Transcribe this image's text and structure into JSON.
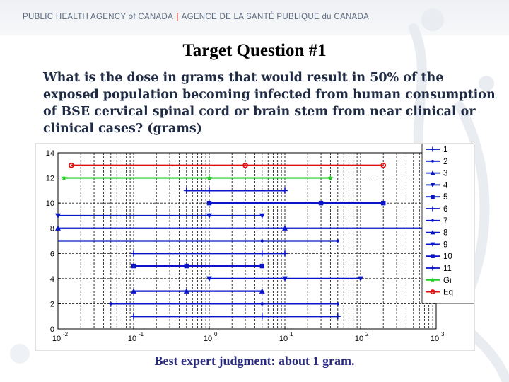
{
  "header": {
    "agency_en": "PUBLIC HEALTH AGENCY of CANADA",
    "separator": "|",
    "agency_fr": "AGENCE DE LA SANTÉ PUBLIQUE du CANADA"
  },
  "slide": {
    "title": "Target Question #1",
    "question": "What is the dose in grams that would result in 50% of the exposed population becoming infected from human consumption of BSE cervical spinal cord or brain stem from near clinical or clinical cases? (grams)",
    "footer": "Best expert judgment: about 1 gram."
  },
  "colors": {
    "experts": "#0a14c8",
    "gi": "#22cc22",
    "eq": "#e01010",
    "grid": "#222222"
  },
  "chart_data": {
    "type": "interval",
    "xscale": "log",
    "xlim": [
      0.01,
      1000
    ],
    "ylim": [
      0,
      14
    ],
    "x_ticks": [
      {
        "value": 0.01,
        "base": "10",
        "exp": "-2"
      },
      {
        "value": 0.1,
        "base": "10",
        "exp": "-1"
      },
      {
        "value": 1,
        "base": "10",
        "exp": "0"
      },
      {
        "value": 10,
        "base": "10",
        "exp": "1"
      },
      {
        "value": 100,
        "base": "10",
        "exp": "2"
      },
      {
        "value": 1000,
        "base": "10",
        "exp": "3"
      }
    ],
    "y_ticks": [
      "0",
      "2",
      "4",
      "6",
      "8",
      "10",
      "12",
      "14"
    ],
    "y_tick_values": [
      0,
      2,
      4,
      6,
      8,
      10,
      12,
      14
    ],
    "grid": true,
    "legend_position": "right",
    "series": [
      {
        "name": "1",
        "y": 1,
        "low": 0.1,
        "median": 5,
        "high": 50,
        "marker": "plus",
        "color": "#0a14c8"
      },
      {
        "name": "2",
        "y": 2,
        "low": 0.05,
        "median": 5,
        "high": 50,
        "marker": "dot",
        "color": "#0a14c8"
      },
      {
        "name": "3",
        "y": 3,
        "low": 0.1,
        "median": 0.5,
        "high": 5,
        "marker": "triangle-up",
        "color": "#0a14c8"
      },
      {
        "name": "4",
        "y": 4,
        "low": 1,
        "median": 10,
        "high": 100,
        "marker": "triangle-down",
        "color": "#0a14c8"
      },
      {
        "name": "5",
        "y": 5,
        "low": 0.1,
        "median": 0.5,
        "high": 5,
        "marker": "square",
        "color": "#0a14c8"
      },
      {
        "name": "6",
        "y": 6,
        "low": 0.1,
        "median": 5,
        "high": 10,
        "marker": "plus",
        "color": "#0a14c8"
      },
      {
        "name": "7",
        "y": 7,
        "low": 0.006,
        "median": 5,
        "high": 50,
        "marker": "dot",
        "color": "#0a14c8"
      },
      {
        "name": "8",
        "y": 8,
        "low": 0.01,
        "median": 10,
        "high": 1000,
        "marker": "triangle-up",
        "color": "#0a14c8"
      },
      {
        "name": "9",
        "y": 9,
        "low": 0.01,
        "median": 1,
        "high": 5,
        "marker": "triangle-down",
        "color": "#0a14c8"
      },
      {
        "name": "10",
        "y": 10,
        "low": 1,
        "median": 30,
        "high": 200,
        "marker": "square",
        "color": "#0a14c8"
      },
      {
        "name": "11",
        "y": 11,
        "low": 0.5,
        "median": 1,
        "high": 10,
        "marker": "plus",
        "color": "#0a14c8"
      },
      {
        "name": "Gi",
        "y": 12,
        "low": 0.012,
        "median": 1,
        "high": 40,
        "marker": "star",
        "color": "#22cc22"
      },
      {
        "name": "Eq",
        "y": 13,
        "low": 0.015,
        "median": 3,
        "high": 200,
        "marker": "circle",
        "color": "#e01010"
      }
    ]
  }
}
